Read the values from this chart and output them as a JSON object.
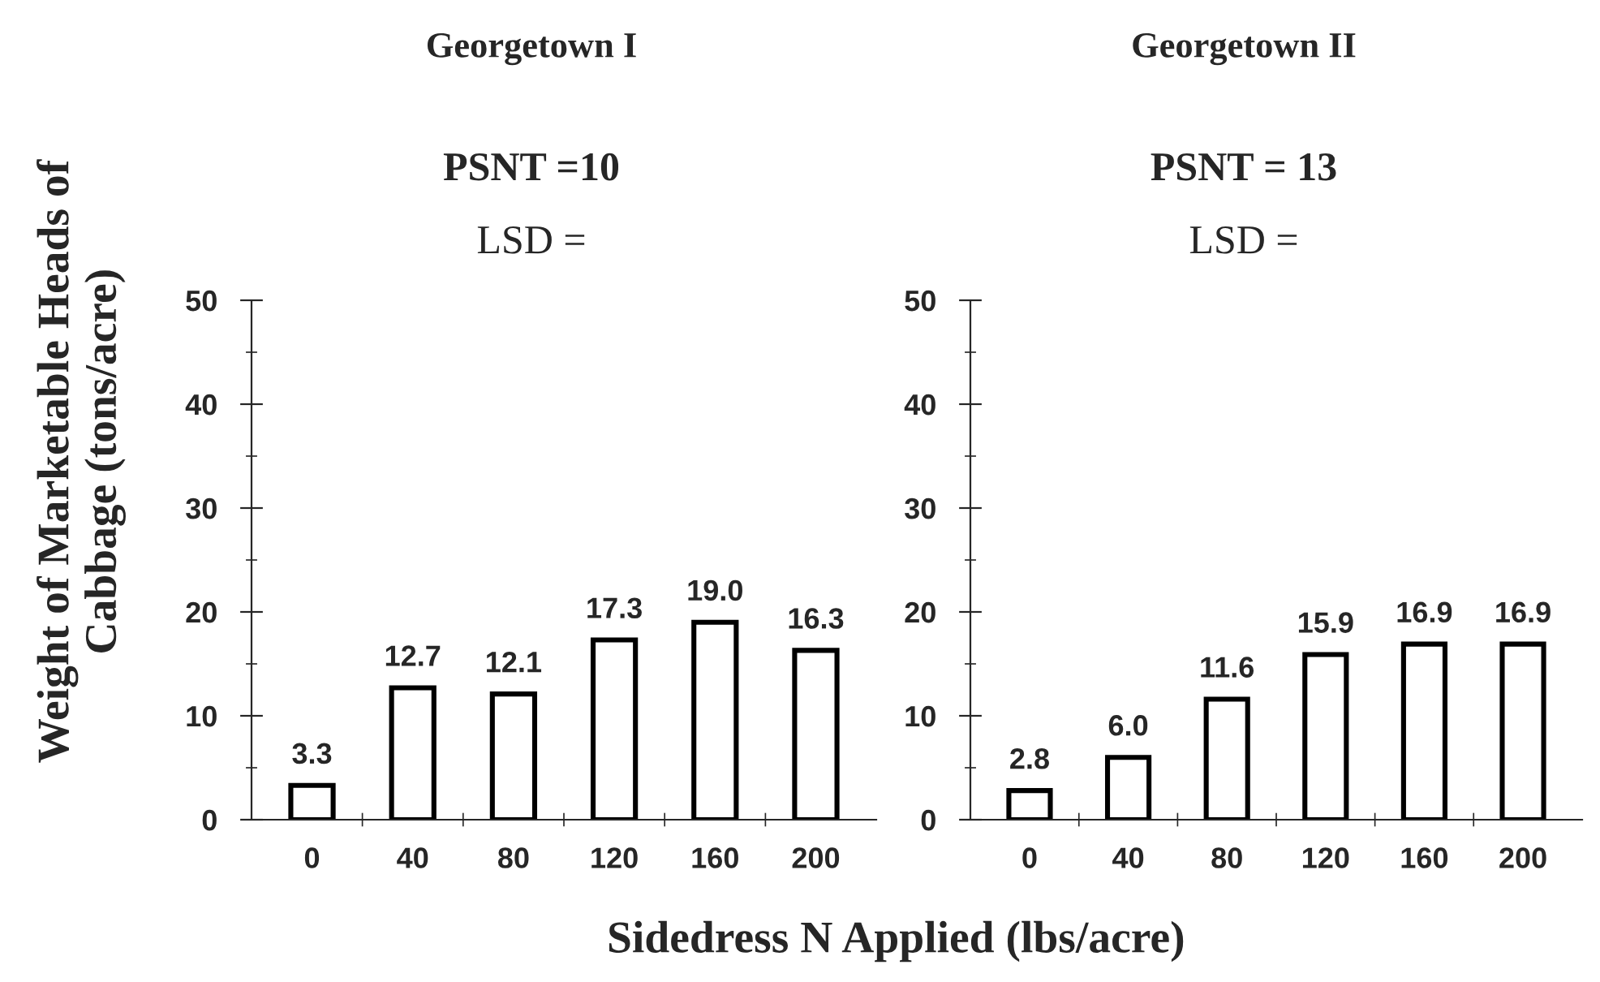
{
  "chart_data": [
    {
      "type": "bar",
      "title": "Georgetown I",
      "annotations": [
        "PSNT =10",
        "LSD ="
      ],
      "ylabel": "Weight of Marketable Heads of\nCabbage (tons/acre)",
      "xlabel": "Sidedress N Applied (lbs/acre)",
      "categories": [
        "0",
        "40",
        "80",
        "120",
        "160",
        "200"
      ],
      "values": [
        3.3,
        12.7,
        12.1,
        17.3,
        19.0,
        16.3
      ],
      "value_labels": [
        "3.3",
        "12.7",
        "12.1",
        "17.3",
        "19.0",
        "16.3"
      ],
      "color": "#ffffff",
      "ylim": [
        0,
        50
      ],
      "yticks": [
        0,
        10,
        20,
        30,
        40,
        50
      ],
      "grid": false,
      "legend": false
    },
    {
      "type": "bar",
      "title": "Georgetown II",
      "annotations": [
        "PSNT = 13",
        "LSD ="
      ],
      "categories": [
        "0",
        "40",
        "80",
        "120",
        "160",
        "200"
      ],
      "values": [
        2.8,
        6.0,
        11.6,
        15.9,
        16.9,
        16.9
      ],
      "value_labels": [
        "2.8",
        "6.0",
        "11.6",
        "15.9",
        "16.9",
        "16.9"
      ],
      "color": "#ffffff",
      "ylim": [
        0,
        50
      ],
      "yticks": [
        0,
        10,
        20,
        30,
        40,
        50
      ],
      "grid": false,
      "legend": false
    }
  ]
}
